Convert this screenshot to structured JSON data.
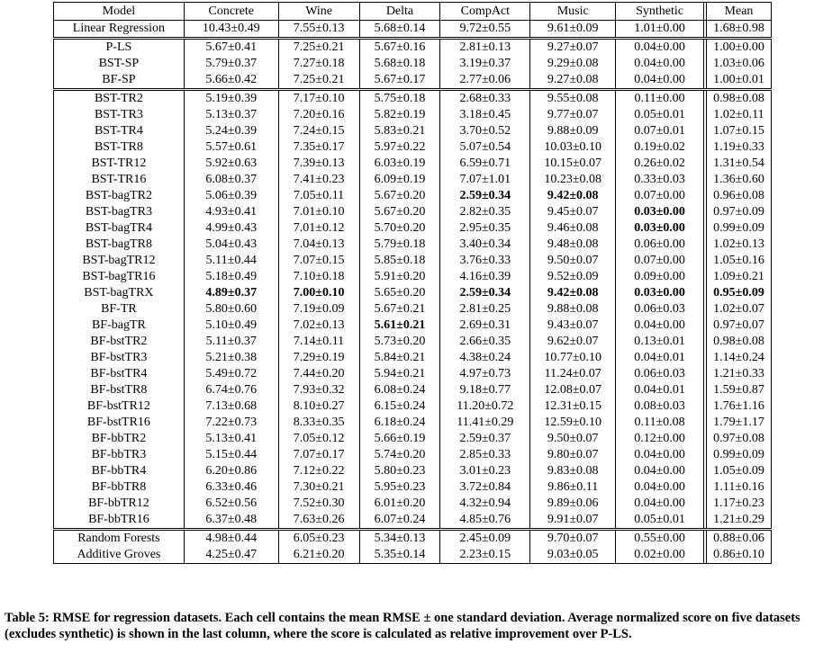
{
  "table": {
    "headers": [
      "Model",
      "Concrete",
      "Wine",
      "Delta",
      "CompAct",
      "Music",
      "Synthetic",
      "Mean"
    ],
    "groups": [
      {
        "rows": [
          {
            "model": "Linear Regression",
            "values": [
              "10.43±0.49",
              "7.55±0.13",
              "5.68±0.14",
              "9.72±0.55",
              "9.61±0.09",
              "1.01±0.00",
              "1.68±0.98"
            ],
            "bold": []
          }
        ]
      },
      {
        "rows": [
          {
            "model": "P-LS",
            "values": [
              "5.67±0.41",
              "7.25±0.21",
              "5.67±0.16",
              "2.81±0.13",
              "9.27±0.07",
              "0.04±0.00",
              "1.00±0.00"
            ],
            "bold": []
          },
          {
            "model": "BST-SP",
            "values": [
              "5.79±0.37",
              "7.27±0.18",
              "5.68±0.18",
              "3.19±0.37",
              "9.29±0.08",
              "0.04±0.00",
              "1.03±0.06"
            ],
            "bold": []
          },
          {
            "model": "BF-SP",
            "values": [
              "5.66±0.42",
              "7.25±0.21",
              "5.67±0.17",
              "2.77±0.06",
              "9.27±0.08",
              "0.04±0.00",
              "1.00±0.01"
            ],
            "bold": []
          }
        ]
      },
      {
        "rows": [
          {
            "model": "BST-TR2",
            "values": [
              "5.19±0.39",
              "7.17±0.10",
              "5.75±0.18",
              "2.68±0.33",
              "9.55±0.08",
              "0.11±0.00",
              "0.98±0.08"
            ],
            "bold": []
          },
          {
            "model": "BST-TR3",
            "values": [
              "5.13±0.37",
              "7.20±0.16",
              "5.82±0.19",
              "3.18±0.45",
              "9.77±0.07",
              "0.05±0.01",
              "1.02±0.11"
            ],
            "bold": []
          },
          {
            "model": "BST-TR4",
            "values": [
              "5.24±0.39",
              "7.24±0.15",
              "5.83±0.21",
              "3.70±0.52",
              "9.88±0.09",
              "0.07±0.01",
              "1.07±0.15"
            ],
            "bold": []
          },
          {
            "model": "BST-TR8",
            "values": [
              "5.57±0.61",
              "7.35±0.17",
              "5.97±0.22",
              "5.07±0.54",
              "10.03±0.10",
              "0.19±0.02",
              "1.19±0.33"
            ],
            "bold": []
          },
          {
            "model": "BST-TR12",
            "values": [
              "5.92±0.63",
              "7.39±0.13",
              "6.03±0.19",
              "6.59±0.71",
              "10.15±0.07",
              "0.26±0.02",
              "1.31±0.54"
            ],
            "bold": []
          },
          {
            "model": "BST-TR16",
            "values": [
              "6.08±0.37",
              "7.41±0.23",
              "6.09±0.19",
              "7.07±1.01",
              "10.23±0.08",
              "0.33±0.03",
              "1.36±0.60"
            ],
            "bold": []
          },
          {
            "model": "BST-bagTR2",
            "values": [
              "5.06±0.39",
              "7.05±0.11",
              "5.67±0.20",
              "2.59±0.34",
              "9.42±0.08",
              "0.07±0.00",
              "0.96±0.08"
            ],
            "bold": [
              3,
              4
            ]
          },
          {
            "model": "BST-bagTR3",
            "values": [
              "4.93±0.41",
              "7.01±0.10",
              "5.67±0.20",
              "2.82±0.35",
              "9.45±0.07",
              "0.03±0.00",
              "0.97±0.09"
            ],
            "bold": [
              5
            ]
          },
          {
            "model": "BST-bagTR4",
            "values": [
              "4.99±0.43",
              "7.01±0.12",
              "5.70±0.20",
              "2.95±0.35",
              "9.46±0.08",
              "0.03±0.00",
              "0.99±0.09"
            ],
            "bold": [
              5
            ]
          },
          {
            "model": "BST-bagTR8",
            "values": [
              "5.04±0.43",
              "7.04±0.13",
              "5.79±0.18",
              "3.40±0.34",
              "9.48±0.08",
              "0.06±0.00",
              "1.02±0.13"
            ],
            "bold": []
          },
          {
            "model": "BST-bagTR12",
            "values": [
              "5.11±0.44",
              "7.07±0.15",
              "5.85±0.18",
              "3.76±0.33",
              "9.50±0.07",
              "0.07±0.00",
              "1.05±0.16"
            ],
            "bold": []
          },
          {
            "model": "BST-bagTR16",
            "values": [
              "5.18±0.49",
              "7.10±0.18",
              "5.91±0.20",
              "4.16±0.39",
              "9.52±0.09",
              "0.09±0.00",
              "1.09±0.21"
            ],
            "bold": []
          },
          {
            "model": "BST-bagTRX",
            "values": [
              "4.89±0.37",
              "7.00±0.10",
              "5.65±0.20",
              "2.59±0.34",
              "9.42±0.08",
              "0.03±0.00",
              "0.95±0.09"
            ],
            "bold": [
              0,
              1,
              3,
              4,
              5,
              6
            ]
          },
          {
            "model": "BF-TR",
            "values": [
              "5.80±0.60",
              "7.19±0.09",
              "5.67±0.21",
              "2.81±0.25",
              "9.88±0.08",
              "0.06±0.03",
              "1.02±0.07"
            ],
            "bold": []
          },
          {
            "model": "BF-bagTR",
            "values": [
              "5.10±0.49",
              "7.02±0.13",
              "5.61±0.21",
              "2.69±0.31",
              "9.43±0.07",
              "0.04±0.00",
              "0.97±0.07"
            ],
            "bold": [
              2
            ]
          },
          {
            "model": "BF-bstTR2",
            "values": [
              "5.11±0.37",
              "7.14±0.11",
              "5.73±0.20",
              "2.66±0.35",
              "9.62±0.07",
              "0.13±0.01",
              "0.98±0.08"
            ],
            "bold": []
          },
          {
            "model": "BF-bstTR3",
            "values": [
              "5.21±0.38",
              "7.29±0.19",
              "5.84±0.21",
              "4.38±0.24",
              "10.77±0.10",
              "0.04±0.01",
              "1.14±0.24"
            ],
            "bold": []
          },
          {
            "model": "BF-bstTR4",
            "values": [
              "5.49±0.72",
              "7.44±0.20",
              "5.94±0.21",
              "4.97±0.73",
              "11.24±0.07",
              "0.06±0.03",
              "1.21±0.33"
            ],
            "bold": []
          },
          {
            "model": "BF-bstTR8",
            "values": [
              "6.74±0.76",
              "7.93±0.32",
              "6.08±0.24",
              "9.18±0.77",
              "12.08±0.07",
              "0.04±0.01",
              "1.59±0.87"
            ],
            "bold": []
          },
          {
            "model": "BF-bstTR12",
            "values": [
              "7.13±0.68",
              "8.10±0.27",
              "6.15±0.24",
              "11.20±0.72",
              "12.31±0.15",
              "0.08±0.03",
              "1.76±1.16"
            ],
            "bold": []
          },
          {
            "model": "BF-bstTR16",
            "values": [
              "7.22±0.73",
              "8.33±0.35",
              "6.18±0.24",
              "11.41±0.29",
              "12.59±0.10",
              "0.11±0.08",
              "1.79±1.17"
            ],
            "bold": []
          },
          {
            "model": "BF-bbTR2",
            "values": [
              "5.13±0.41",
              "7.05±0.12",
              "5.66±0.19",
              "2.59±0.37",
              "9.50±0.07",
              "0.12±0.00",
              "0.97±0.08"
            ],
            "bold": []
          },
          {
            "model": "BF-bbTR3",
            "values": [
              "5.15±0.44",
              "7.07±0.17",
              "5.74±0.20",
              "2.85±0.33",
              "9.80±0.07",
              "0.04±0.00",
              "0.99±0.09"
            ],
            "bold": []
          },
          {
            "model": "BF-bbTR4",
            "values": [
              "6.20±0.86",
              "7.12±0.22",
              "5.80±0.23",
              "3.01±0.23",
              "9.83±0.08",
              "0.04±0.00",
              "1.05±0.09"
            ],
            "bold": []
          },
          {
            "model": "BF-bbTR8",
            "values": [
              "6.33±0.46",
              "7.30±0.21",
              "5.95±0.23",
              "3.72±0.84",
              "9.86±0.11",
              "0.04±0.00",
              "1.11±0.16"
            ],
            "bold": []
          },
          {
            "model": "BF-bbTR12",
            "values": [
              "6.52±0.56",
              "7.52±0.30",
              "6.01±0.20",
              "4.32±0.94",
              "9.89±0.06",
              "0.04±0.00",
              "1.17±0.23"
            ],
            "bold": []
          },
          {
            "model": "BF-bbTR16",
            "values": [
              "6.37±0.48",
              "7.63±0.26",
              "6.07±0.24",
              "4.85±0.76",
              "9.91±0.07",
              "0.05±0.01",
              "1.21±0.29"
            ],
            "bold": []
          }
        ]
      },
      {
        "rows": [
          {
            "model": "Random Forests",
            "values": [
              "4.98±0.44",
              "6.05±0.23",
              "5.34±0.13",
              "2.45±0.09",
              "9.70±0.07",
              "0.55±0.00",
              "0.88±0.06"
            ],
            "bold": []
          },
          {
            "model": "Additive Groves",
            "values": [
              "4.25±0.47",
              "6.21±0.20",
              "5.35±0.14",
              "2.23±0.15",
              "9.03±0.05",
              "0.02±0.00",
              "0.86±0.10"
            ],
            "bold": []
          }
        ]
      }
    ]
  },
  "caption": "Table 5: RMSE for regression datasets. Each cell contains the mean RMSE ± one standard deviation. Average normalized score on five datasets (excludes synthetic) is shown in the last column, where the score is calculated as relative improvement over P-LS."
}
